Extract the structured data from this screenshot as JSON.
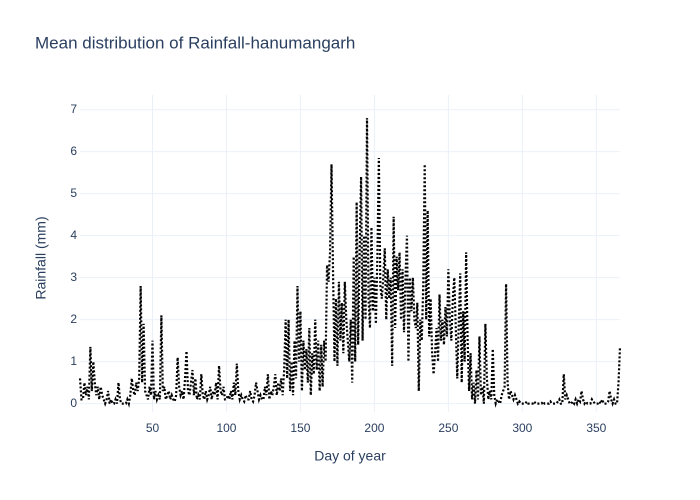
{
  "chart_data": {
    "type": "line",
    "title": "Mean distribution of Rainfall-hanumangarh",
    "x_label": "Day of year",
    "y_label": "Rainfall (mm)",
    "color": "#000000",
    "line_style": "dot",
    "grid": true,
    "xlim": [
      1,
      366
    ],
    "ylim": [
      -0.2,
      7.35
    ],
    "xticks": [
      50,
      100,
      150,
      200,
      250,
      300,
      350
    ],
    "yticks": [
      0,
      1,
      2,
      3,
      4,
      5,
      6,
      7
    ],
    "x": [
      1,
      2,
      3,
      4,
      5,
      6,
      7,
      8,
      9,
      10,
      11,
      12,
      13,
      14,
      15,
      16,
      17,
      18,
      19,
      20,
      21,
      22,
      23,
      24,
      25,
      26,
      27,
      28,
      29,
      30,
      31,
      32,
      33,
      34,
      35,
      36,
      37,
      38,
      39,
      40,
      41,
      42,
      43,
      44,
      45,
      46,
      47,
      48,
      49,
      50,
      51,
      52,
      53,
      54,
      55,
      56,
      57,
      58,
      59,
      60,
      61,
      62,
      63,
      64,
      65,
      66,
      67,
      68,
      69,
      70,
      71,
      72,
      73,
      74,
      75,
      76,
      77,
      78,
      79,
      80,
      81,
      82,
      83,
      84,
      85,
      86,
      87,
      88,
      89,
      90,
      91,
      92,
      93,
      94,
      95,
      96,
      97,
      98,
      99,
      100,
      101,
      102,
      103,
      104,
      105,
      106,
      107,
      108,
      109,
      110,
      111,
      112,
      113,
      114,
      115,
      116,
      117,
      118,
      119,
      120,
      121,
      122,
      123,
      124,
      125,
      126,
      127,
      128,
      129,
      130,
      131,
      132,
      133,
      134,
      135,
      136,
      137,
      138,
      139,
      140,
      141,
      142,
      143,
      144,
      145,
      146,
      147,
      148,
      149,
      150,
      151,
      152,
      153,
      154,
      155,
      156,
      157,
      158,
      159,
      160,
      161,
      162,
      163,
      164,
      165,
      166,
      167,
      168,
      169,
      170,
      171,
      172,
      173,
      174,
      175,
      176,
      177,
      178,
      179,
      180,
      181,
      182,
      183,
      184,
      185,
      186,
      187,
      188,
      189,
      190,
      191,
      192,
      193,
      194,
      195,
      196,
      197,
      198,
      199,
      200,
      201,
      202,
      203,
      204,
      205,
      206,
      207,
      208,
      209,
      210,
      211,
      212,
      213,
      214,
      215,
      216,
      217,
      218,
      219,
      220,
      221,
      222,
      223,
      224,
      225,
      226,
      227,
      228,
      229,
      230,
      231,
      232,
      233,
      234,
      235,
      236,
      237,
      238,
      239,
      240,
      241,
      242,
      243,
      244,
      245,
      246,
      247,
      248,
      249,
      250,
      251,
      252,
      253,
      254,
      255,
      256,
      257,
      258,
      259,
      260,
      261,
      262,
      263,
      264,
      265,
      266,
      267,
      268,
      269,
      270,
      271,
      272,
      273,
      274,
      275,
      276,
      277,
      278,
      279,
      280,
      281,
      282,
      283,
      284,
      285,
      286,
      287,
      288,
      289,
      290,
      291,
      292,
      293,
      294,
      295,
      296,
      297,
      298,
      299,
      300,
      301,
      302,
      303,
      304,
      305,
      306,
      307,
      308,
      309,
      310,
      311,
      312,
      313,
      314,
      315,
      316,
      317,
      318,
      319,
      320,
      321,
      322,
      323,
      324,
      325,
      326,
      327,
      328,
      329,
      330,
      331,
      332,
      333,
      334,
      335,
      336,
      337,
      338,
      339,
      340,
      341,
      342,
      343,
      344,
      345,
      346,
      347,
      348,
      349,
      350,
      351,
      352,
      353,
      354,
      355,
      356,
      357,
      358,
      359,
      360,
      361,
      362,
      363,
      364,
      365,
      366
    ],
    "values": [
      0.6,
      0.1,
      0.1,
      0.5,
      0.2,
      0.4,
      0.1,
      1.35,
      0.3,
      1.0,
      0.5,
      0.2,
      0.4,
      0.1,
      0.4,
      0.2,
      0.1,
      0,
      0.1,
      0.3,
      0,
      0.1,
      0,
      0,
      0.1,
      0,
      0.5,
      0.1,
      0,
      0,
      0,
      0,
      0.1,
      0,
      0.2,
      0.6,
      0.3,
      0.2,
      0.5,
      0.3,
      0.6,
      2.8,
      0.5,
      1.9,
      0.3,
      0.2,
      0.1,
      0.4,
      0.2,
      1.5,
      0.1,
      0.3,
      0.1,
      0.2,
      0.1,
      2.1,
      0.3,
      0.4,
      0.1,
      0.2,
      0.3,
      0.1,
      0.2,
      0.1,
      0.05,
      0.2,
      1.1,
      0.4,
      0.2,
      0.3,
      0.1,
      0.6,
      1.25,
      0.3,
      0.2,
      0.5,
      0.8,
      0.2,
      0.6,
      0.1,
      0.2,
      0.1,
      0.7,
      0.2,
      0.1,
      0.3,
      0.1,
      0.2,
      0.4,
      0.1,
      0.3,
      0.2,
      0.5,
      0.1,
      0.9,
      0.3,
      0.2,
      0.4,
      0.1,
      0.1,
      0.2,
      0.1,
      0.3,
      0.1,
      0.5,
      0.2,
      0.95,
      0.3,
      0.1,
      0.2,
      0.1,
      0.05,
      0.2,
      0.1,
      0.1,
      0.3,
      0.1,
      0.05,
      0.2,
      0.5,
      0.3,
      0.1,
      0.2,
      0.1,
      0.1,
      0.4,
      0.2,
      0.7,
      0.1,
      0.3,
      0.2,
      0.4,
      0.7,
      0.2,
      0.5,
      0.3,
      0.6,
      0.2,
      0.8,
      2.0,
      0.6,
      2.0,
      0.3,
      1.0,
      0.2,
      1.5,
      0.6,
      2.8,
      1.0,
      2.2,
      0.3,
      1.5,
      0.8,
      1.3,
      0.5,
      1.8,
      0.2,
      1.2,
      0.7,
      2.0,
      0.8,
      1.5,
      0.3,
      1.4,
      0.4,
      1.5,
      1.0,
      3.3,
      2.9,
      3.6,
      5.7,
      3.2,
      1.0,
      2.5,
      0.9,
      2.9,
      1.5,
      2.4,
      1.2,
      2.9,
      2.0,
      1.5,
      1.0,
      2.0,
      0.5,
      3.5,
      1.0,
      4.8,
      1.4,
      3.6,
      5.4,
      1.5,
      4.0,
      2.0,
      6.8,
      2.5,
      1.8,
      4.2,
      2.2,
      3.0,
      1.9,
      3.5,
      5.85,
      2.8,
      2.5,
      3.0,
      3.7,
      2.0,
      3.2,
      2.5,
      3.0,
      0.9,
      4.45,
      1.8,
      3.5,
      2.7,
      3.6,
      2.0,
      3.2,
      1.7,
      3.0,
      4.0,
      1.0,
      3.0,
      2.2,
      3.0,
      2.0,
      1.8,
      2.4,
      0.3,
      2.0,
      1.5,
      2.8,
      5.7,
      2.0,
      4.6,
      1.6,
      2.5,
      1.2,
      0.7,
      1.2,
      1.8,
      1.0,
      2.6,
      1.5,
      2.0,
      1.4,
      2.3,
      1.6,
      3.2,
      2.0,
      1.5,
      2.5,
      3.0,
      1.8,
      0.6,
      1.9,
      3.1,
      0.5,
      2.2,
      1.0,
      3.6,
      1.5,
      0.3,
      1.2,
      0.1,
      0.5,
      0,
      0.8,
      0.1,
      1.6,
      0.2,
      0.4,
      0,
      1.9,
      0.6,
      0.1,
      0.3,
      0.1,
      1.3,
      0.2,
      0,
      0.1,
      0.05,
      0,
      0.2,
      0.3,
      0.4,
      2.85,
      0.5,
      0.1,
      0.3,
      0.2,
      0.1,
      0.2,
      0.1,
      0,
      0.05,
      0,
      0,
      0,
      0,
      0.05,
      0,
      0,
      0,
      0,
      0.05,
      0,
      0,
      0,
      0,
      0,
      0.05,
      0,
      0,
      0,
      0,
      0.05,
      0,
      0,
      0,
      0,
      0.05,
      0.1,
      0,
      0,
      0.7,
      0.1,
      0.2,
      0.1,
      0,
      0,
      0.05,
      0,
      0.1,
      0,
      0.1,
      0.05,
      0.3,
      0.1,
      0,
      0.05,
      0,
      0,
      0,
      0.1,
      0.05,
      0,
      0,
      0,
      0.05,
      0,
      0.1,
      0,
      0,
      0,
      0.05,
      0.3,
      0.1,
      0,
      0.1,
      0,
      0,
      0.5,
      1.35
    ]
  }
}
